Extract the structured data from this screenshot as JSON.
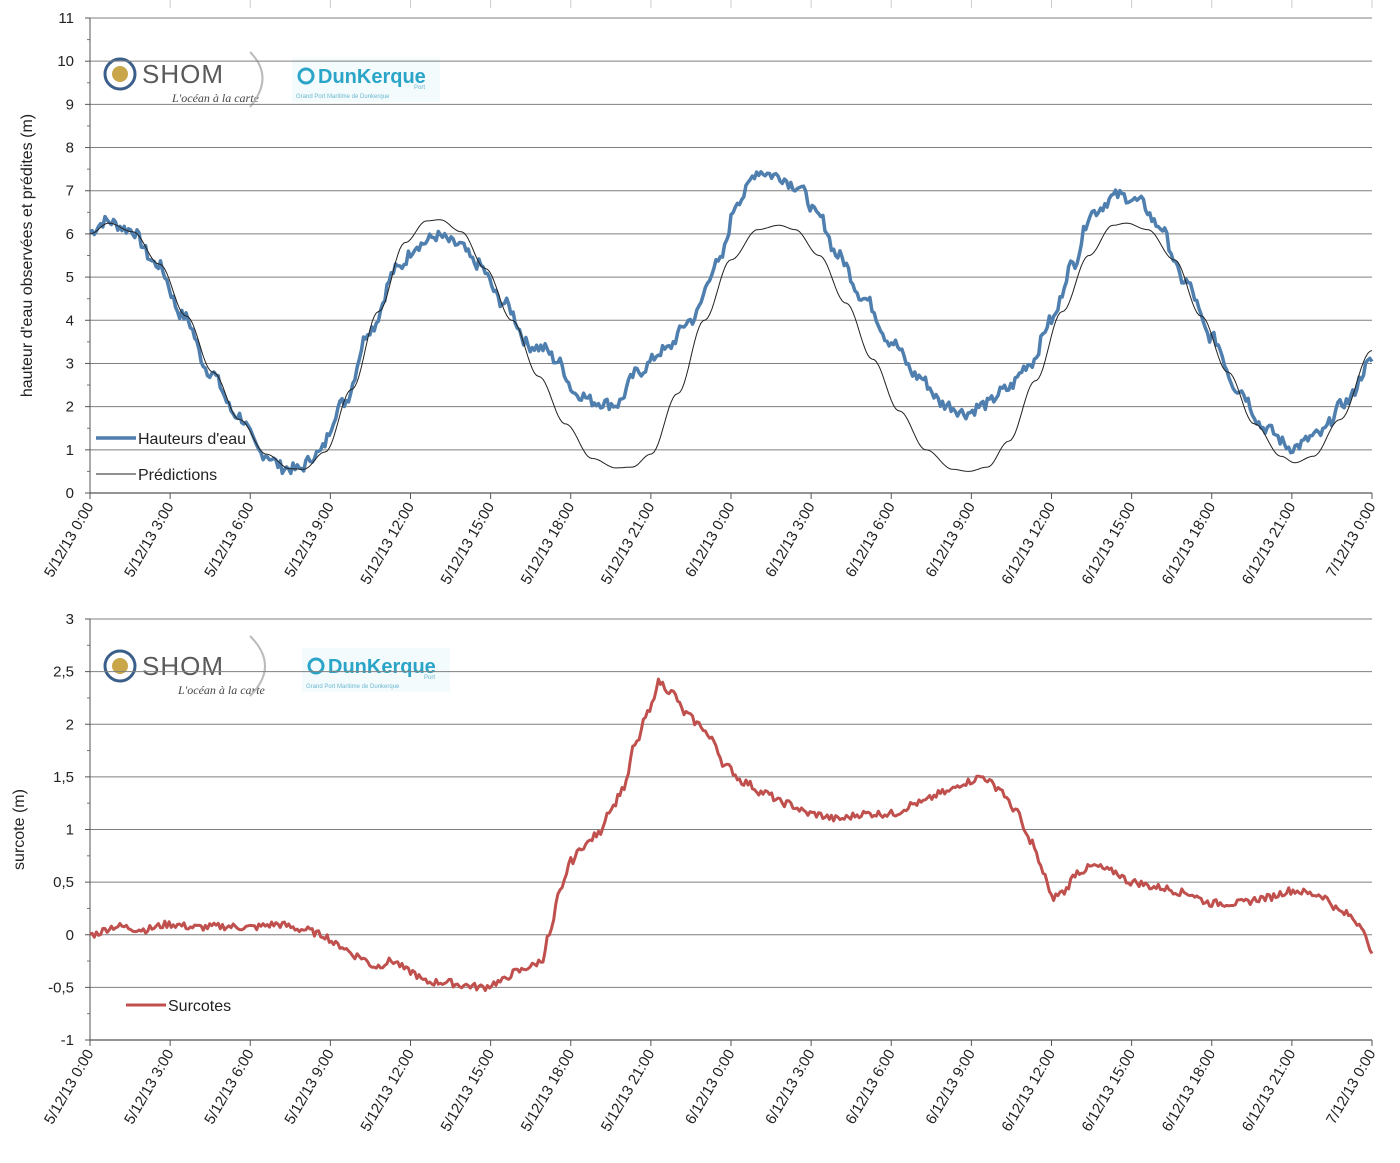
{
  "logos": {
    "shom": "SHOM",
    "shom_tagline": "L'océan à la carte",
    "dunkerque": "DunKerque",
    "dunkerque_sub": "Port",
    "dunkerque_small": "Grand Port Maritime de Dunkerque"
  },
  "colors": {
    "observed": "#4f7fae",
    "predicted": "#222222",
    "surge": "#c0504d",
    "grid": "#7f7f7f"
  },
  "chart_data": [
    {
      "type": "line",
      "ylabel": "hauteur d'eau observées et prédites (m)",
      "xlabel": "",
      "ylim": [
        0,
        11
      ],
      "yticks": [
        "0",
        "1",
        "2",
        "3",
        "4",
        "5",
        "6",
        "7",
        "8",
        "9",
        "10",
        "11"
      ],
      "x_unit": "hours since 5/12/13 0:00",
      "xlim": [
        0,
        48
      ],
      "xtick_labels": [
        "5/12/13 0:00",
        "5/12/13 3:00",
        "5/12/13 6:00",
        "5/12/13 9:00",
        "5/12/13 12:00",
        "5/12/13 15:00",
        "5/12/13 18:00",
        "5/12/13 21:00",
        "6/12/13 0:00",
        "6/12/13 3:00",
        "6/12/13 6:00",
        "6/12/13 9:00",
        "6/12/13 12:00",
        "6/12/13 15:00",
        "6/12/13 18:00",
        "6/12/13 21:00",
        "7/12/13 0:00"
      ],
      "grid": true,
      "legend": "bottom-left",
      "series": [
        {
          "name": "Hauteurs d'eau",
          "x": [
            0,
            0.6,
            1.5,
            2.5,
            3.5,
            4.5,
            5.5,
            6.5,
            7.3,
            7.8,
            8.5,
            9.5,
            10.5,
            11.5,
            12.3,
            13.0,
            13.8,
            14.5,
            15.5,
            16.5,
            17.0,
            17.5,
            18.2,
            19.0,
            19.7,
            20.5,
            21.5,
            22.5,
            23.5,
            24.3,
            25.0,
            25.7,
            26.5,
            27.3,
            28.0,
            29.0,
            30.0,
            31.0,
            32.0,
            32.8,
            33.5,
            34.3,
            35.2,
            36.0,
            36.8,
            37.5,
            38.5,
            39.3,
            40.0,
            41.0,
            42.0,
            43.0,
            44.0,
            45.0,
            46.0,
            47.0,
            48.0
          ],
          "y": [
            6.05,
            6.3,
            6.1,
            5.3,
            4.1,
            2.8,
            1.8,
            0.9,
            0.58,
            0.55,
            0.9,
            2.1,
            3.8,
            5.2,
            5.75,
            5.95,
            5.75,
            5.3,
            4.4,
            3.4,
            3.35,
            3.05,
            2.3,
            2.1,
            2.05,
            2.8,
            3.3,
            4.0,
            5.3,
            6.8,
            7.45,
            7.35,
            7.1,
            6.4,
            5.5,
            4.5,
            3.5,
            2.7,
            2.05,
            1.85,
            2.05,
            2.4,
            3.0,
            4.0,
            5.3,
            6.5,
            6.9,
            6.75,
            6.2,
            4.9,
            3.6,
            2.4,
            1.5,
            1.05,
            1.35,
            2.1,
            3.05
          ]
        },
        {
          "name": "Prédictions",
          "x": [
            0,
            0.7,
            1.6,
            2.6,
            3.6,
            4.6,
            5.6,
            6.6,
            7.5,
            8.0,
            8.8,
            9.8,
            10.8,
            11.8,
            12.6,
            13.1,
            13.9,
            14.8,
            15.8,
            16.8,
            17.8,
            18.8,
            19.7,
            20.3,
            21.0,
            22.0,
            23.0,
            24.0,
            25.0,
            25.8,
            26.4,
            27.3,
            28.3,
            29.3,
            30.3,
            31.3,
            32.3,
            32.9,
            33.6,
            34.4,
            35.4,
            36.4,
            37.4,
            38.3,
            38.8,
            39.6,
            40.6,
            41.6,
            42.6,
            43.6,
            44.6,
            45.1,
            45.8,
            46.8,
            48.0
          ],
          "y": [
            6.0,
            6.25,
            6.05,
            5.3,
            4.1,
            2.8,
            1.7,
            0.9,
            0.56,
            0.55,
            0.95,
            2.4,
            4.2,
            5.8,
            6.3,
            6.33,
            6.05,
            5.2,
            4.0,
            2.7,
            1.6,
            0.8,
            0.58,
            0.6,
            0.9,
            2.3,
            4.0,
            5.4,
            6.1,
            6.2,
            6.1,
            5.5,
            4.4,
            3.1,
            1.9,
            1.0,
            0.55,
            0.5,
            0.6,
            1.2,
            2.6,
            4.2,
            5.5,
            6.2,
            6.25,
            6.1,
            5.4,
            4.1,
            2.8,
            1.6,
            0.85,
            0.7,
            0.85,
            1.7,
            3.3
          ]
        }
      ]
    },
    {
      "type": "line",
      "ylabel": "surcote (m)",
      "xlabel": "",
      "ylim": [
        -1,
        3
      ],
      "yticks": [
        "-1",
        "-0,5",
        "0",
        "0,5",
        "1",
        "1,5",
        "2",
        "2,5",
        "3"
      ],
      "x_unit": "hours since 5/12/13 0:00",
      "xlim": [
        0,
        48
      ],
      "xtick_labels": [
        "5/12/13 0:00",
        "5/12/13 3:00",
        "5/12/13 6:00",
        "5/12/13 9:00",
        "5/12/13 12:00",
        "5/12/13 15:00",
        "5/12/13 18:00",
        "5/12/13 21:00",
        "6/12/13 0:00",
        "6/12/13 3:00",
        "6/12/13 6:00",
        "6/12/13 9:00",
        "6/12/13 12:00",
        "6/12/13 15:00",
        "6/12/13 18:00",
        "6/12/13 21:00",
        "7/12/13 0:00"
      ],
      "grid": true,
      "legend": "bottom-left",
      "series": [
        {
          "name": "Surcotes",
          "x": [
            0,
            1,
            2,
            3,
            4,
            5,
            6,
            7,
            8,
            8.7,
            9.3,
            10,
            10.7,
            11.3,
            12,
            12.6,
            13.3,
            14,
            14.7,
            15.3,
            16,
            16.5,
            16.9,
            17.2,
            17.6,
            18,
            18.5,
            19,
            19.5,
            20,
            20.4,
            20.9,
            21.3,
            21.8,
            22.3,
            22.8,
            23.3,
            23.8,
            24.5,
            25.2,
            26,
            27,
            28,
            29,
            30,
            31,
            32,
            32.8,
            33.4,
            34,
            34.6,
            35.2,
            35.7,
            36,
            36.4,
            37,
            37.6,
            38.3,
            39,
            40,
            41,
            42,
            43,
            44,
            45,
            46,
            47,
            47.6,
            48
          ],
          "y": [
            0.0,
            0.08,
            0.05,
            0.1,
            0.07,
            0.08,
            0.07,
            0.1,
            0.05,
            0.0,
            -0.1,
            -0.2,
            -0.3,
            -0.25,
            -0.35,
            -0.45,
            -0.45,
            -0.48,
            -0.5,
            -0.45,
            -0.35,
            -0.3,
            -0.25,
            0.0,
            0.4,
            0.7,
            0.85,
            0.95,
            1.2,
            1.4,
            1.8,
            2.1,
            2.4,
            2.3,
            2.1,
            2.0,
            1.85,
            1.6,
            1.45,
            1.35,
            1.25,
            1.15,
            1.1,
            1.15,
            1.15,
            1.25,
            1.35,
            1.45,
            1.5,
            1.4,
            1.2,
            0.9,
            0.6,
            0.35,
            0.4,
            0.6,
            0.65,
            0.6,
            0.5,
            0.45,
            0.4,
            0.3,
            0.3,
            0.35,
            0.42,
            0.38,
            0.2,
            0.1,
            -0.2
          ]
        }
      ]
    }
  ]
}
